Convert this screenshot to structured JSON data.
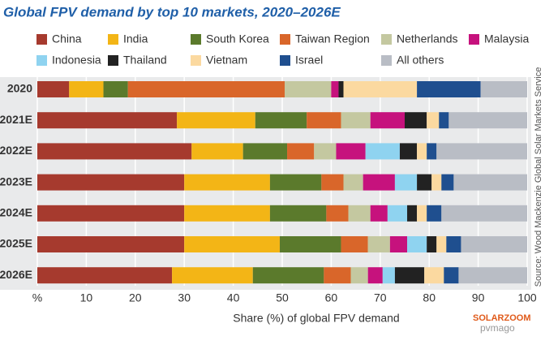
{
  "chart_data": {
    "type": "bar",
    "orientation": "horizontal",
    "stacked": true,
    "title": "Global FPV demand by top 10 markets, 2020–2026E",
    "xlabel": "Share (%) of global FPV demand",
    "source": "Source: Wood Mackenzie Global Solar Markets Service",
    "watermarks": [
      "SOLARZOOM",
      "pvmago"
    ],
    "categories": [
      "2020",
      "2021E",
      "2022E",
      "2023E",
      "2024E",
      "2025E",
      "2026E"
    ],
    "series": [
      {
        "name": "China",
        "color": "#a63a2e",
        "values": [
          6.5,
          28.5,
          31.5,
          30,
          30,
          30,
          27.5
        ]
      },
      {
        "name": "India",
        "color": "#f3b516",
        "values": [
          7,
          16,
          10.5,
          17.5,
          17.5,
          19.5,
          16.5
        ]
      },
      {
        "name": "South Korea",
        "color": "#5b7a2c",
        "values": [
          5,
          10.5,
          9,
          10.5,
          11.5,
          12.5,
          14.5
        ]
      },
      {
        "name": "Taiwan Region",
        "color": "#d9662a",
        "values": [
          32,
          7,
          5.5,
          4.5,
          4.5,
          5.5,
          5.5
        ]
      },
      {
        "name": "Netherlands",
        "color": "#c4c8a0",
        "values": [
          9.5,
          6,
          4.5,
          4,
          4.5,
          4.5,
          3.5
        ]
      },
      {
        "name": "Malaysia",
        "color": "#c6127d",
        "values": [
          1.5,
          7,
          6,
          6.5,
          3.5,
          3.5,
          3
        ]
      },
      {
        "name": "Indonesia",
        "color": "#8fd3f0",
        "values": [
          0,
          0,
          7,
          4.5,
          4,
          4,
          2.5
        ]
      },
      {
        "name": "Thailand",
        "color": "#222222",
        "values": [
          1,
          4.5,
          3.5,
          3,
          2,
          2,
          6
        ]
      },
      {
        "name": "Vietnam",
        "color": "#fbd9a0",
        "values": [
          15,
          2.5,
          2,
          2,
          2,
          2,
          4
        ]
      },
      {
        "name": "Israel",
        "color": "#1f4f8f",
        "values": [
          13,
          2,
          2,
          2.5,
          3,
          3,
          3
        ]
      },
      {
        "name": "All others",
        "color": "#b9bdc5",
        "values": [
          9.5,
          16,
          18.5,
          15,
          17.5,
          13.5,
          14
        ]
      }
    ],
    "xlim": [
      0,
      100
    ],
    "xticks": [
      {
        "value": 0,
        "label": "%"
      },
      10,
      20,
      30,
      40,
      50,
      60,
      70,
      80,
      90,
      100
    ],
    "grid": true
  }
}
